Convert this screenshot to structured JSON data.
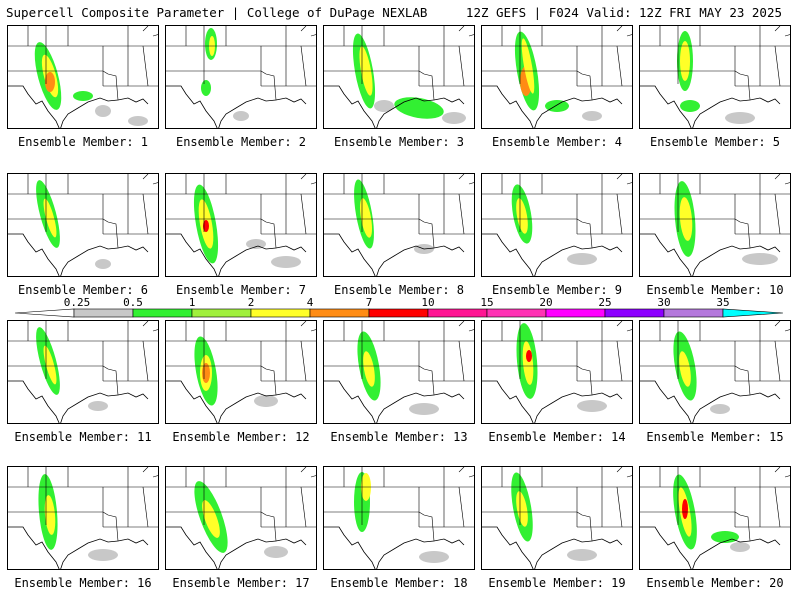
{
  "header": {
    "title_left": "Supercell Composite Parameter | College of DuPage NEXLAB",
    "title_right": "12Z GEFS | F024 Valid: 12Z FRI MAY 23 2025"
  },
  "panels": [
    {
      "label": "Ensemble Member: 1"
    },
    {
      "label": "Ensemble Member: 2"
    },
    {
      "label": "Ensemble Member: 3"
    },
    {
      "label": "Ensemble Member: 4"
    },
    {
      "label": "Ensemble Member: 5"
    },
    {
      "label": "Ensemble Member: 6"
    },
    {
      "label": "Ensemble Member: 7"
    },
    {
      "label": "Ensemble Member: 8"
    },
    {
      "label": "Ensemble Member: 9"
    },
    {
      "label": "Ensemble Member: 10"
    },
    {
      "label": "Ensemble Member: 11"
    },
    {
      "label": "Ensemble Member: 12"
    },
    {
      "label": "Ensemble Member: 13"
    },
    {
      "label": "Ensemble Member: 14"
    },
    {
      "label": "Ensemble Member: 15"
    },
    {
      "label": "Ensemble Member: 16"
    },
    {
      "label": "Ensemble Member: 17"
    },
    {
      "label": "Ensemble Member: 18"
    },
    {
      "label": "Ensemble Member: 19"
    },
    {
      "label": "Ensemble Member: 20"
    }
  ],
  "legend": {
    "labels": [
      "0.25",
      "0.5",
      "1",
      "2",
      "4",
      "7",
      "10",
      "15",
      "20",
      "25",
      "30",
      "35"
    ],
    "colors": [
      "#ffffff",
      "#c8c8c8",
      "#32f032",
      "#a0f03c",
      "#ffff28",
      "#ff8c14",
      "#ff0000",
      "#ff1493",
      "#ff32b4",
      "#ff00ff",
      "#8c00ff",
      "#b478dc",
      "#00ffff"
    ]
  }
}
